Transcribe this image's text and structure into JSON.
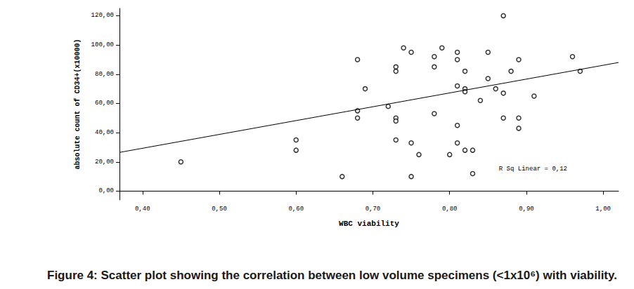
{
  "chart_data": {
    "type": "scatter",
    "caption": "Figure 4: Scatter plot showing the correlation between low volume specimens (<1x10⁶) with viability.",
    "x_label": "WBC viability",
    "y_label": "absolute count of CD34+(x10000)",
    "annotation": "R Sq Linear = 0,12",
    "x": [
      0.45,
      0.6,
      0.6,
      0.66,
      0.68,
      0.68,
      0.68,
      0.69,
      0.72,
      0.73,
      0.73,
      0.73,
      0.73,
      0.73,
      0.74,
      0.75,
      0.75,
      0.75,
      0.76,
      0.78,
      0.78,
      0.78,
      0.79,
      0.8,
      0.81,
      0.81,
      0.81,
      0.81,
      0.81,
      0.82,
      0.82,
      0.82,
      0.82,
      0.83,
      0.83,
      0.84,
      0.85,
      0.85,
      0.86,
      0.87,
      0.87,
      0.87,
      0.88,
      0.89,
      0.89,
      0.89,
      0.91,
      0.96,
      0.97
    ],
    "values": [
      20,
      35,
      28,
      10,
      90,
      55,
      50,
      70,
      58,
      85,
      82,
      50,
      48,
      35,
      98,
      95,
      33,
      10,
      25,
      92,
      85,
      53,
      98,
      25,
      95,
      90,
      72,
      45,
      33,
      82,
      70,
      68,
      28,
      28,
      12,
      62,
      95,
      77,
      70,
      120,
      67,
      50,
      82,
      90,
      50,
      43,
      65,
      92,
      82
    ],
    "fit_line": {
      "x": [
        0.37,
        1.02
      ],
      "values": [
        26.5,
        88
      ]
    },
    "color": "#000000",
    "marker": "circle-open",
    "xlim": [
      0.37,
      1.02
    ],
    "xticks": [
      {
        "value": 0.4,
        "label": "0,40"
      },
      {
        "value": 0.5,
        "label": "0,50"
      },
      {
        "value": 0.6,
        "label": "0,60"
      },
      {
        "value": 0.7,
        "label": "0,70"
      },
      {
        "value": 0.8,
        "label": "0,80"
      },
      {
        "value": 0.9,
        "label": "0,90"
      },
      {
        "value": 1.0,
        "label": "1,00"
      }
    ],
    "ylim": [
      -6,
      125
    ],
    "yticks": [
      {
        "value": 0,
        "label": "0,00"
      },
      {
        "value": 20,
        "label": "20,00"
      },
      {
        "value": 40,
        "label": "40,00"
      },
      {
        "value": 60,
        "label": "60,00"
      },
      {
        "value": 80,
        "label": "80,00"
      },
      {
        "value": 100,
        "label": "100,00"
      },
      {
        "value": 120,
        "label": "120,00"
      }
    ],
    "grid": false
  }
}
